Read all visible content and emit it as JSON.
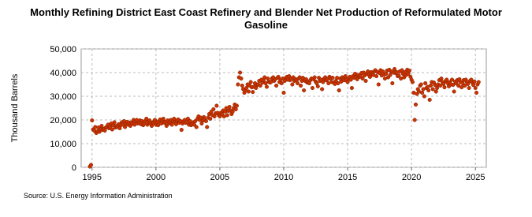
{
  "chart_data": {
    "type": "scatter",
    "title": "Monthly Refining District East Coast Refinery and Blender Net Production of Reformulated Motor Gasoline",
    "y_label": "Thousand Barrels",
    "source": "Source: U.S. Energy Information Administration",
    "xlim": [
      1994.15,
      2025.85
    ],
    "ylim": [
      0,
      50000
    ],
    "xticks": [
      1995,
      2000,
      2005,
      2010,
      2015,
      2020,
      2025
    ],
    "yticks": [
      0,
      {
        "value": 10000,
        "label": "10,000"
      },
      {
        "value": 20000,
        "label": "20,000"
      },
      {
        "value": 30000,
        "label": "30,000"
      },
      {
        "value": 40000,
        "label": "40,000"
      },
      {
        "value": 50000,
        "label": "50,000"
      }
    ],
    "grid": true,
    "series": [
      {
        "name": "East Coast",
        "color": "#cc3300",
        "x": [
          1994.83,
          1994.92,
          1995.0,
          1995.08,
          1995.17,
          1995.25,
          1995.33,
          1995.42,
          1995.5,
          1995.58,
          1995.67,
          1995.75,
          1995.83,
          1995.92,
          1996.0,
          1996.08,
          1996.17,
          1996.25,
          1996.33,
          1996.42,
          1996.5,
          1996.58,
          1996.67,
          1996.75,
          1996.83,
          1996.92,
          1997.0,
          1997.08,
          1997.17,
          1997.25,
          1997.33,
          1997.42,
          1997.5,
          1997.58,
          1997.67,
          1997.75,
          1997.83,
          1997.92,
          1998.0,
          1998.08,
          1998.17,
          1998.25,
          1998.33,
          1998.42,
          1998.5,
          1998.58,
          1998.67,
          1998.75,
          1998.83,
          1998.92,
          1999.0,
          1999.08,
          1999.17,
          1999.25,
          1999.33,
          1999.42,
          1999.5,
          1999.58,
          1999.67,
          1999.75,
          1999.83,
          1999.92,
          2000.0,
          2000.08,
          2000.17,
          2000.25,
          2000.33,
          2000.42,
          2000.5,
          2000.58,
          2000.67,
          2000.75,
          2000.83,
          2000.92,
          2001.0,
          2001.08,
          2001.17,
          2001.25,
          2001.33,
          2001.42,
          2001.5,
          2001.58,
          2001.67,
          2001.75,
          2001.83,
          2001.92,
          2002.0,
          2002.08,
          2002.17,
          2002.25,
          2002.33,
          2002.42,
          2002.5,
          2002.58,
          2002.67,
          2002.75,
          2002.83,
          2002.92,
          2003.0,
          2003.08,
          2003.17,
          2003.25,
          2003.33,
          2003.42,
          2003.5,
          2003.58,
          2003.67,
          2003.75,
          2003.83,
          2003.92,
          2004.0,
          2004.08,
          2004.17,
          2004.25,
          2004.33,
          2004.42,
          2004.5,
          2004.58,
          2004.67,
          2004.75,
          2004.83,
          2004.92,
          2005.0,
          2005.08,
          2005.17,
          2005.25,
          2005.33,
          2005.42,
          2005.5,
          2005.58,
          2005.67,
          2005.75,
          2005.83,
          2005.92,
          2006.0,
          2006.08,
          2006.17,
          2006.25,
          2006.33,
          2006.42,
          2006.5,
          2006.58,
          2006.67,
          2006.75,
          2006.83,
          2006.92,
          2007.0,
          2007.08,
          2007.17,
          2007.25,
          2007.33,
          2007.42,
          2007.5,
          2007.58,
          2007.67,
          2007.75,
          2007.83,
          2007.92,
          2008.0,
          2008.08,
          2008.17,
          2008.25,
          2008.33,
          2008.42,
          2008.5,
          2008.58,
          2008.67,
          2008.75,
          2008.83,
          2008.92,
          2009.0,
          2009.08,
          2009.17,
          2009.25,
          2009.33,
          2009.42,
          2009.5,
          2009.58,
          2009.67,
          2009.75,
          2009.83,
          2009.92,
          2010.0,
          2010.08,
          2010.17,
          2010.25,
          2010.33,
          2010.42,
          2010.5,
          2010.58,
          2010.67,
          2010.75,
          2010.83,
          2010.92,
          2011.0,
          2011.08,
          2011.17,
          2011.25,
          2011.33,
          2011.42,
          2011.5,
          2011.58,
          2011.67,
          2011.75,
          2011.83,
          2011.92,
          2012.0,
          2012.08,
          2012.17,
          2012.25,
          2012.33,
          2012.42,
          2012.5,
          2012.58,
          2012.67,
          2012.75,
          2012.83,
          2012.92,
          2013.0,
          2013.08,
          2013.17,
          2013.25,
          2013.33,
          2013.42,
          2013.5,
          2013.58,
          2013.67,
          2013.75,
          2013.83,
          2013.92,
          2014.0,
          2014.08,
          2014.17,
          2014.25,
          2014.33,
          2014.42,
          2014.5,
          2014.58,
          2014.67,
          2014.75,
          2014.83,
          2014.92,
          2015.0,
          2015.08,
          2015.17,
          2015.25,
          2015.33,
          2015.42,
          2015.5,
          2015.58,
          2015.67,
          2015.75,
          2015.83,
          2015.92,
          2016.0,
          2016.08,
          2016.17,
          2016.25,
          2016.33,
          2016.42,
          2016.5,
          2016.58,
          2016.67,
          2016.75,
          2016.83,
          2016.92,
          2017.0,
          2017.08,
          2017.17,
          2017.25,
          2017.33,
          2017.42,
          2017.5,
          2017.58,
          2017.67,
          2017.75,
          2017.83,
          2017.92,
          2018.0,
          2018.08,
          2018.17,
          2018.25,
          2018.33,
          2018.42,
          2018.5,
          2018.58,
          2018.67,
          2018.75,
          2018.83,
          2018.92,
          2019.0,
          2019.08,
          2019.17,
          2019.25,
          2019.33,
          2019.42,
          2019.5,
          2019.58,
          2019.67,
          2019.75,
          2019.83,
          2019.92,
          2020.0,
          2020.08,
          2020.17,
          2020.25,
          2020.33,
          2020.42,
          2020.5,
          2020.58,
          2020.67,
          2020.75,
          2020.83,
          2020.92,
          2021.0,
          2021.08,
          2021.17,
          2021.25,
          2021.33,
          2021.42,
          2021.5,
          2021.58,
          2021.67,
          2021.75,
          2021.83,
          2021.92,
          2022.0,
          2022.08,
          2022.17,
          2022.25,
          2022.33,
          2022.42,
          2022.5,
          2022.58,
          2022.67,
          2022.75,
          2022.83,
          2022.92,
          2023.0,
          2023.08,
          2023.17,
          2023.25,
          2023.33,
          2023.42,
          2023.5,
          2023.58,
          2023.67,
          2023.75,
          2023.83,
          2023.92,
          2024.0,
          2024.08,
          2024.17,
          2024.25,
          2024.33,
          2024.42,
          2024.5,
          2024.58,
          2024.67,
          2024.75,
          2024.83,
          2024.92,
          2025.0,
          2025.08,
          2025.17,
          2025.25
        ],
        "values": [
          300,
          1000,
          19800,
          16000,
          15500,
          17000,
          14500,
          15200,
          16800,
          15000,
          16000,
          17500,
          15800,
          16200,
          15500,
          16800,
          17200,
          18000,
          16500,
          17000,
          18500,
          16000,
          17800,
          19000,
          16800,
          17500,
          17000,
          18200,
          16500,
          17800,
          19000,
          18000,
          19500,
          17000,
          18500,
          19200,
          18000,
          18800,
          17500,
          19000,
          18500,
          20000,
          18000,
          19500,
          20000,
          18500,
          19000,
          19800,
          18200,
          19500,
          17800,
          18500,
          19500,
          20500,
          18000,
          19200,
          19800,
          18500,
          17500,
          19000,
          18600,
          20000,
          18000,
          19000,
          17800,
          19500,
          20200,
          18500,
          19500,
          20500,
          18800,
          19200,
          17500,
          19800,
          18500,
          19200,
          20000,
          18000,
          19500,
          20500,
          19000,
          18200,
          19800,
          20200,
          18800,
          19500,
          15800,
          18500,
          19500,
          20000,
          18800,
          19200,
          20500,
          18000,
          19500,
          17800,
          18200,
          19000,
          18000,
          19500,
          17000,
          20500,
          21500,
          20000,
          21000,
          18500,
          19800,
          21200,
          20000,
          19500,
          17000,
          21000,
          22500,
          20500,
          23500,
          22000,
          24500,
          21500,
          22800,
          26000,
          23000,
          22000,
          21500,
          23000,
          22500,
          24000,
          21500,
          23500,
          25000,
          22000,
          23800,
          25500,
          24000,
          22500,
          23500,
          25000,
          26500,
          24500,
          26000,
          35000,
          38000,
          40000,
          37500,
          34500,
          33000,
          31500,
          32500,
          33500,
          35000,
          32000,
          34500,
          36000,
          33800,
          31800,
          34000,
          35500,
          33500,
          34800,
          35000,
          36500,
          34500,
          37000,
          35800,
          36800,
          38000,
          35500,
          34000,
          37500,
          36200,
          35800,
          36000,
          37500,
          38000,
          36500,
          37200,
          34500,
          37800,
          38200,
          36000,
          37000,
          35500,
          37500,
          31500,
          36500,
          37800,
          38200,
          37000,
          38500,
          36800,
          37500,
          35000,
          38000,
          36500,
          37200,
          36800,
          35500,
          37500,
          38000,
          34500,
          36500,
          37800,
          32500,
          36500,
          37200,
          35800,
          36000,
          35500,
          36800,
          37500,
          33500,
          37200,
          38000,
          36200,
          35500,
          34200,
          37800,
          36500,
          37000,
          33000,
          36000,
          37500,
          38000,
          36800,
          37200,
          35500,
          38200,
          37500,
          36000,
          37800,
          35800,
          35200,
          36500,
          37800,
          35500,
          32500,
          37500,
          36200,
          38000,
          37200,
          36800,
          38500,
          37000,
          36000,
          37500,
          38200,
          37000,
          33500,
          38500,
          37800,
          39500,
          38000,
          37200,
          39000,
          38200,
          38500,
          39800,
          37500,
          40000,
          38800,
          36500,
          39500,
          40500,
          39000,
          38200,
          40200,
          39600,
          39000,
          40500,
          41000,
          38500,
          40200,
          35000,
          39800,
          41000,
          38800,
          40500,
          39200,
          37500,
          39500,
          40800,
          38000,
          41200,
          39000,
          40500,
          35500,
          40000,
          41500,
          39800,
          40200,
          38500,
          38800,
          40500,
          37500,
          41000,
          39500,
          38000,
          40200,
          39000,
          41200,
          39500,
          40800,
          38200,
          37000,
          36000,
          31500,
          20000,
          26500,
          31000,
          33000,
          32000,
          34500,
          35000,
          31500,
          33000,
          30000,
          35500,
          33500,
          34000,
          32500,
          28500,
          34500,
          36000,
          33000,
          35800,
          34800,
          32000,
          33500,
          35000,
          36800,
          34500,
          37500,
          36000,
          35200,
          33800,
          36500,
          37000,
          35500,
          34200,
          36000,
          35000,
          37000,
          34800,
          32000,
          36200,
          35500,
          36800,
          34500,
          37200,
          36000,
          33800,
          35500,
          36800,
          34500,
          37000,
          36000,
          35200,
          33500,
          36500,
          37000,
          35800,
          34800,
          36200,
          33500,
          31500,
          35000,
          36000
        ]
      }
    ]
  }
}
